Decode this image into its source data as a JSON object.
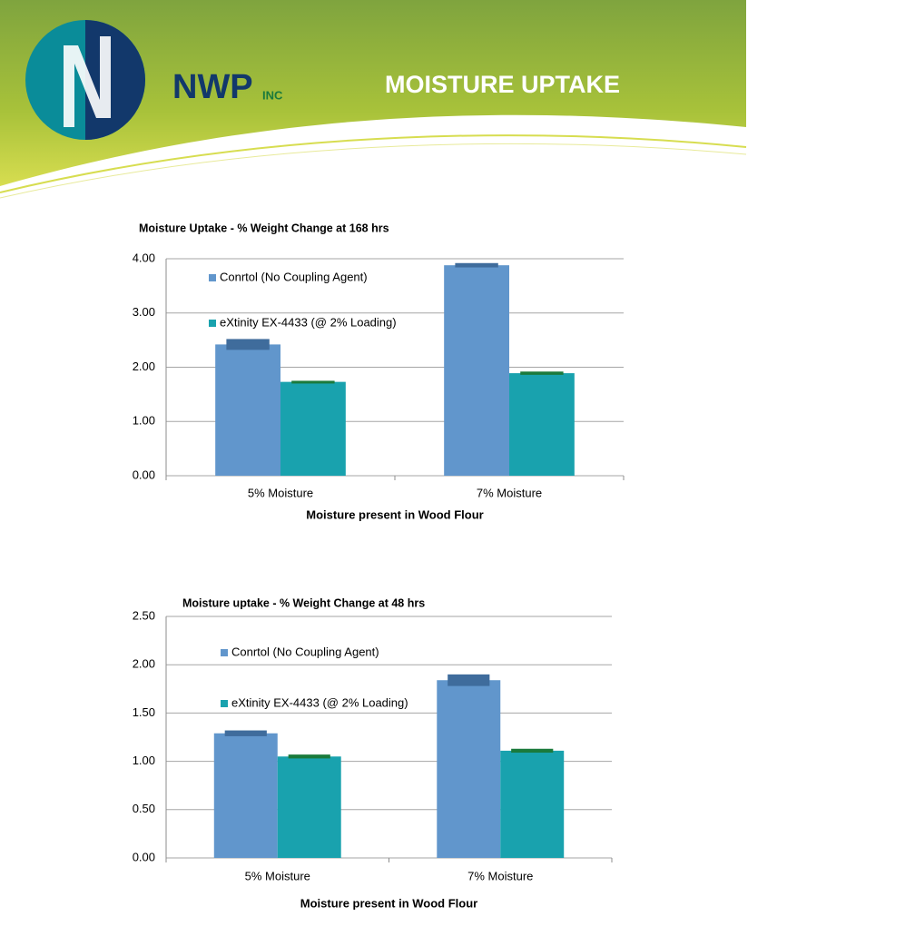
{
  "header": {
    "company": "NWP",
    "suffix": "INC",
    "title": "MOISTURE  UPTAKE"
  },
  "chart_data": [
    {
      "type": "bar",
      "title": "Moisture Uptake - % Weight Change at 168 hrs",
      "x_label": "Moisture present in Wood Flour",
      "categories": [
        "5% Moisture",
        "7% Moisture"
      ],
      "series": [
        {
          "name": "Conrtol (No Coupling Agent)",
          "color": "#6196cc",
          "error_color": "#3f6c9c",
          "values": [
            2.42,
            3.88
          ],
          "errors": [
            0.1,
            0.04
          ]
        },
        {
          "name": "eXtinity EX-4433 (@ 2% Loading)",
          "color": "#19a2ae",
          "error_color": "#1a7a3c",
          "values": [
            1.73,
            1.89
          ],
          "errors": [
            0.02,
            0.03
          ]
        }
      ],
      "ylim": [
        0,
        4
      ],
      "yticks": [
        {
          "value": 0,
          "label": "0.00"
        },
        {
          "value": 1,
          "label": "1.00"
        },
        {
          "value": 2,
          "label": "2.00"
        },
        {
          "value": 3,
          "label": "3.00"
        },
        {
          "value": 4,
          "label": "4.00"
        }
      ],
      "grid": true,
      "legend": "upper left"
    },
    {
      "type": "bar",
      "title": "Moisture uptake - % Weight Change at 48 hrs",
      "x_label": "Moisture present in Wood Flour",
      "categories": [
        "5% Moisture",
        "7% Moisture"
      ],
      "series": [
        {
          "name": "Conrtol (No Coupling Agent)",
          "color": "#6196cc",
          "error_color": "#3f6c9c",
          "values": [
            1.29,
            1.84
          ],
          "errors": [
            0.03,
            0.06
          ]
        },
        {
          "name": "eXtinity EX-4433 (@ 2% Loading)",
          "color": "#19a2ae",
          "error_color": "#1a7a3c",
          "values": [
            1.05,
            1.11
          ],
          "errors": [
            0.02,
            0.02
          ]
        }
      ],
      "ylim": [
        0,
        2.5
      ],
      "yticks": [
        {
          "value": 0,
          "label": "0.00"
        },
        {
          "value": 0.5,
          "label": "0.50"
        },
        {
          "value": 1,
          "label": "1.00"
        },
        {
          "value": 1.5,
          "label": "1.50"
        },
        {
          "value": 2,
          "label": "2.00"
        },
        {
          "value": 2.5,
          "label": "2.50"
        }
      ],
      "grid": true,
      "legend": "upper left"
    }
  ]
}
